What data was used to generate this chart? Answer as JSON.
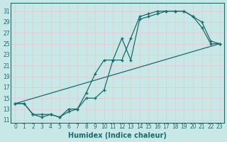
{
  "xlabel": "Humidex (Indice chaleur)",
  "bg_color": "#c8e8e8",
  "grid_color": "#b0d0d0",
  "line_color": "#1a6b6b",
  "xlim": [
    -0.5,
    23.5
  ],
  "ylim": [
    10.5,
    32.5
  ],
  "xticks": [
    0,
    1,
    2,
    3,
    4,
    5,
    6,
    7,
    8,
    9,
    10,
    11,
    12,
    13,
    14,
    15,
    16,
    17,
    18,
    19,
    20,
    21,
    22,
    23
  ],
  "yticks": [
    11,
    13,
    15,
    17,
    19,
    21,
    23,
    25,
    27,
    29,
    31
  ],
  "line1_x": [
    0,
    1,
    2,
    3,
    4,
    5,
    6,
    7,
    8,
    9,
    10,
    11,
    12,
    13,
    14,
    15,
    16,
    17,
    18,
    19,
    20,
    21,
    22,
    23
  ],
  "line1_y": [
    14,
    14,
    12,
    11.5,
    12,
    11.5,
    12.5,
    13,
    16,
    19.5,
    22,
    22,
    26,
    22,
    29.5,
    30,
    30.5,
    31,
    31,
    31,
    30,
    28,
    25,
    25
  ],
  "line2_x": [
    0,
    1,
    2,
    3,
    4,
    5,
    6,
    7,
    8,
    9,
    10,
    11,
    12,
    13,
    14,
    15,
    16,
    17,
    18,
    19,
    20,
    21,
    22,
    23
  ],
  "line2_y": [
    14,
    14,
    12,
    12,
    12,
    11.5,
    13,
    13,
    15,
    15,
    16.5,
    22,
    22,
    26,
    30,
    30.5,
    31,
    31,
    31,
    31,
    30,
    29,
    25.5,
    25
  ],
  "line3_x": [
    0,
    23
  ],
  "line3_y": [
    14,
    25
  ]
}
